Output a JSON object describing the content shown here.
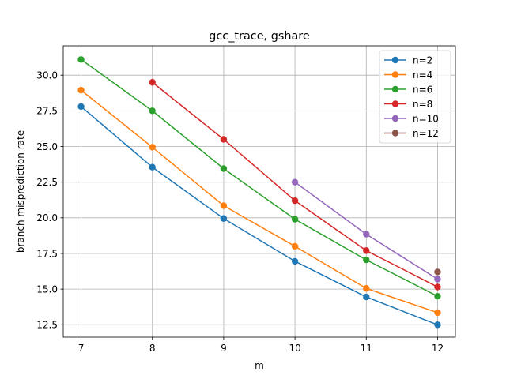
{
  "chart_data": {
    "type": "line",
    "title": "gcc_trace, gshare",
    "xlabel": "m",
    "ylabel": "branch misprediction rate",
    "x_ticks": [
      7,
      8,
      9,
      10,
      11,
      12
    ],
    "y_ticks": [
      12.5,
      15.0,
      17.5,
      20.0,
      22.5,
      25.0,
      27.5,
      30.0
    ],
    "y_tick_labels": [
      "12.5",
      "15.0",
      "17.5",
      "20.0",
      "22.5",
      "25.0",
      "27.5",
      "30.0"
    ],
    "xlim": [
      6.75,
      12.25
    ],
    "ylim": [
      11.63,
      32.06
    ],
    "grid": true,
    "legend_position": "upper right",
    "series": [
      {
        "name": "n=2",
        "color": "#1f77b4",
        "x": [
          7,
          8,
          9,
          10,
          11,
          12
        ],
        "y": [
          27.8,
          23.55,
          19.95,
          16.95,
          14.45,
          12.5
        ]
      },
      {
        "name": "n=4",
        "color": "#ff7f0e",
        "x": [
          7,
          8,
          9,
          10,
          11,
          12
        ],
        "y": [
          28.95,
          24.95,
          20.85,
          18.0,
          15.05,
          13.35
        ]
      },
      {
        "name": "n=6",
        "color": "#2ca02c",
        "x": [
          7,
          8,
          9,
          10,
          11,
          12
        ],
        "y": [
          31.1,
          27.5,
          23.45,
          19.9,
          17.05,
          14.5
        ]
      },
      {
        "name": "n=8",
        "color": "#d62728",
        "x": [
          8,
          9,
          10,
          11,
          12
        ],
        "y": [
          29.5,
          25.5,
          21.2,
          17.7,
          15.15
        ]
      },
      {
        "name": "n=10",
        "color": "#9467bd",
        "x": [
          10,
          11,
          12
        ],
        "y": [
          22.5,
          18.85,
          15.7
        ]
      },
      {
        "name": "n=12",
        "color": "#8c564b",
        "x": [
          12
        ],
        "y": [
          16.2
        ]
      }
    ]
  }
}
